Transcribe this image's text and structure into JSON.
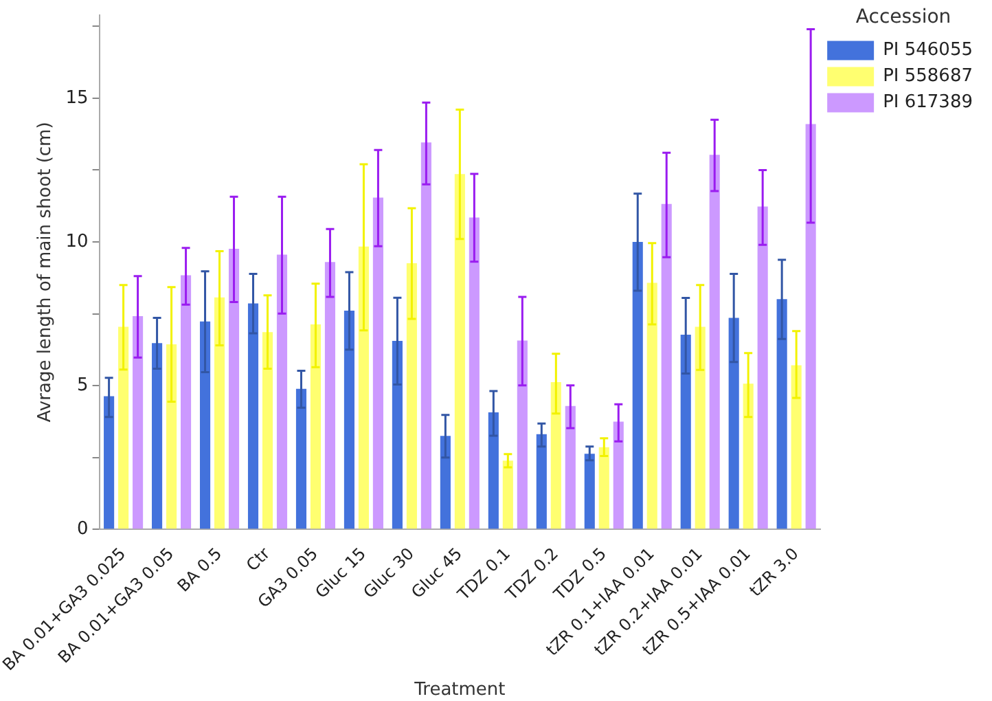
{
  "chart_data": {
    "type": "bar",
    "xlabel": "Treatment",
    "ylabel": "Avrage length of main shoot (cm)",
    "legend_title": "Accession",
    "legend": "top right",
    "grid": false,
    "categories": [
      "BA 0.01+GA3 0.025",
      "BA 0.01+GA3 0.05",
      "BA 0.5",
      "Ctr",
      "GA3 0.05",
      "Gluc 15",
      "Gluc 30",
      "Gluc 45",
      "TDZ 0.1",
      "TDZ 0.2",
      "TDZ 0.5",
      "tZR 0.1+IAA 0.01",
      "tZR 0.2+IAA 0.01",
      "tZR 0.5+IAA 0.01",
      "tZR 3.0"
    ],
    "ylim": [
      0,
      17.9
    ],
    "yticks": [
      0,
      {
        "value": 2.5,
        "label": null
      },
      5,
      {
        "value": 7.5,
        "label": null
      },
      10,
      {
        "value": 12.5,
        "label": null
      },
      15,
      {
        "value": 17.5,
        "label": null
      }
    ],
    "series": [
      {
        "name": "PI 546055",
        "color": "#4372dc",
        "values": [
          4.63,
          6.48,
          7.23,
          7.86,
          4.89,
          7.61,
          6.56,
          3.25,
          4.07,
          3.31,
          2.63,
          10.0,
          6.77,
          7.36,
          8.01
        ],
        "errors": [
          [
            3.91,
            5.27
          ],
          [
            5.59,
            7.36
          ],
          [
            5.47,
            8.98
          ],
          [
            6.82,
            8.89
          ],
          [
            4.23,
            5.52
          ],
          [
            6.25,
            8.95
          ],
          [
            5.04,
            8.06
          ],
          [
            2.5,
            3.98
          ],
          [
            3.26,
            4.81
          ],
          [
            2.88,
            3.68
          ],
          [
            2.4,
            2.88
          ],
          [
            8.3,
            11.68
          ],
          [
            5.42,
            8.05
          ],
          [
            5.82,
            8.89
          ],
          [
            6.62,
            9.38
          ]
        ]
      },
      {
        "name": "PI 558687",
        "color": "#ffff70",
        "values": [
          7.05,
          6.44,
          8.07,
          6.86,
          7.13,
          9.84,
          9.26,
          12.36,
          2.39,
          5.12,
          2.86,
          8.58,
          7.05,
          5.07,
          5.71
        ],
        "errors": [
          [
            5.56,
            8.5
          ],
          [
            4.44,
            8.43
          ],
          [
            6.4,
            9.68
          ],
          [
            5.59,
            8.14
          ],
          [
            5.64,
            8.55
          ],
          [
            6.92,
            12.7
          ],
          [
            7.32,
            11.17
          ],
          [
            10.1,
            14.6
          ],
          [
            2.16,
            2.62
          ],
          [
            4.03,
            6.11
          ],
          [
            2.55,
            3.17
          ],
          [
            7.13,
            9.96
          ],
          [
            5.55,
            8.5
          ],
          [
            3.91,
            6.13
          ],
          [
            4.57,
            6.9
          ]
        ]
      },
      {
        "name": "PI 617389",
        "color": "#cc99ff",
        "values": [
          7.42,
          8.84,
          9.76,
          9.56,
          9.3,
          11.54,
          13.46,
          10.85,
          6.57,
          4.29,
          3.75,
          11.32,
          13.03,
          11.23,
          14.1
        ],
        "errors": [
          [
            5.98,
            8.81
          ],
          [
            7.82,
            9.79
          ],
          [
            7.91,
            11.57
          ],
          [
            7.51,
            11.57
          ],
          [
            8.09,
            10.45
          ],
          [
            9.85,
            13.2
          ],
          [
            12.0,
            14.85
          ],
          [
            9.31,
            12.37
          ],
          [
            5.01,
            8.09
          ],
          [
            3.52,
            5.01
          ],
          [
            3.06,
            4.35
          ],
          [
            9.47,
            13.1
          ],
          [
            11.77,
            14.25
          ],
          [
            9.9,
            12.5
          ],
          [
            10.67,
            17.4
          ]
        ]
      }
    ]
  }
}
